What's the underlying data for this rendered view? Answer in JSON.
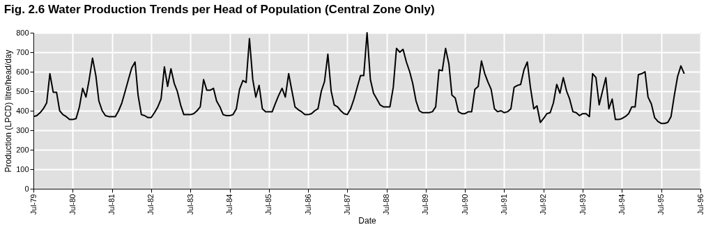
{
  "chart_data": {
    "type": "line",
    "title": "Fig. 2.6  Water Production Trends per Head of Population (Central Zone Only)",
    "xlabel": "Date",
    "ylabel": "Production (LPCD) litre/head/day",
    "x": [
      "1979-07",
      "1979-08",
      "1979-09",
      "1979-10",
      "1979-11",
      "1979-12",
      "1980-01",
      "1980-02",
      "1980-03",
      "1980-04",
      "1980-05",
      "1980-06",
      "1980-07",
      "1980-08",
      "1980-09",
      "1980-10",
      "1980-11",
      "1980-12",
      "1981-01",
      "1981-02",
      "1981-03",
      "1981-04",
      "1981-05",
      "1981-06",
      "1981-07",
      "1981-08",
      "1981-09",
      "1981-10",
      "1981-11",
      "1981-12",
      "1982-01",
      "1982-02",
      "1982-03",
      "1982-04",
      "1982-05",
      "1982-06",
      "1982-07",
      "1982-08",
      "1982-09",
      "1982-10",
      "1982-11",
      "1982-12",
      "1983-01",
      "1983-02",
      "1983-03",
      "1983-04",
      "1983-05",
      "1983-06",
      "1983-07",
      "1983-08",
      "1983-09",
      "1983-10",
      "1983-11",
      "1983-12",
      "1984-01",
      "1984-02",
      "1984-03",
      "1984-04",
      "1984-05",
      "1984-06",
      "1984-07",
      "1984-08",
      "1984-09",
      "1984-10",
      "1984-11",
      "1984-12",
      "1985-01",
      "1985-02",
      "1985-03",
      "1985-04",
      "1985-05",
      "1985-06",
      "1985-07",
      "1985-08",
      "1985-09",
      "1985-10",
      "1985-11",
      "1985-12",
      "1986-01",
      "1986-02",
      "1986-03",
      "1986-04",
      "1986-05",
      "1986-06",
      "1986-07",
      "1986-08",
      "1986-09",
      "1986-10",
      "1986-11",
      "1986-12",
      "1987-01",
      "1987-02",
      "1987-03",
      "1987-04",
      "1987-05",
      "1987-06",
      "1987-07",
      "1987-08",
      "1987-09",
      "1987-10",
      "1987-11",
      "1987-12",
      "1988-01",
      "1988-02",
      "1988-03",
      "1988-04",
      "1988-05",
      "1988-06",
      "1988-07",
      "1988-08",
      "1988-09",
      "1988-10",
      "1988-11",
      "1988-12",
      "1989-01",
      "1989-02",
      "1989-03",
      "1989-04",
      "1989-05",
      "1989-06",
      "1989-07",
      "1989-08",
      "1989-09",
      "1989-10",
      "1989-11",
      "1989-12",
      "1990-01",
      "1990-02",
      "1990-03",
      "1990-04",
      "1990-05",
      "1990-06",
      "1990-07",
      "1990-08",
      "1990-09",
      "1990-10",
      "1990-11",
      "1990-12",
      "1991-01",
      "1991-02",
      "1991-03",
      "1991-04",
      "1991-05",
      "1991-06",
      "1991-07",
      "1991-08",
      "1991-09",
      "1991-10",
      "1991-11",
      "1991-12",
      "1992-01",
      "1992-02",
      "1992-03",
      "1992-04",
      "1992-05",
      "1992-06",
      "1992-07",
      "1992-08",
      "1992-09",
      "1992-10",
      "1992-11",
      "1992-12",
      "1993-01",
      "1993-02",
      "1993-03",
      "1993-04",
      "1993-05",
      "1993-06",
      "1993-07",
      "1993-08",
      "1993-09",
      "1993-10",
      "1993-11",
      "1993-12",
      "1994-01",
      "1994-02",
      "1994-03",
      "1994-04",
      "1994-05",
      "1994-06",
      "1994-07",
      "1994-08",
      "1994-09",
      "1994-10",
      "1994-11",
      "1994-12",
      "1995-01",
      "1995-02",
      "1995-03",
      "1995-04",
      "1995-05",
      "1995-06",
      "1995-07",
      "1995-08",
      "1995-09",
      "1995-10",
      "1995-11",
      "1995-12",
      "1996-01",
      "1996-02"
    ],
    "series": [
      {
        "color": "#000000",
        "values": [
          370,
          375,
          390,
          410,
          440,
          590,
          495,
          495,
          400,
          380,
          370,
          355,
          355,
          360,
          420,
          515,
          470,
          560,
          670,
          580,
          450,
          400,
          375,
          370,
          370,
          370,
          400,
          440,
          500,
          560,
          620,
          650,
          480,
          380,
          375,
          365,
          365,
          390,
          420,
          460,
          625,
          525,
          615,
          540,
          500,
          430,
          380,
          380,
          380,
          385,
          400,
          420,
          560,
          505,
          505,
          515,
          450,
          420,
          380,
          375,
          375,
          380,
          410,
          510,
          555,
          545,
          770,
          560,
          470,
          530,
          410,
          395,
          395,
          395,
          440,
          480,
          515,
          470,
          590,
          500,
          420,
          405,
          395,
          380,
          380,
          385,
          400,
          410,
          500,
          550,
          690,
          500,
          430,
          420,
          400,
          385,
          380,
          410,
          460,
          520,
          580,
          580,
          800,
          560,
          490,
          460,
          430,
          420,
          420,
          420,
          520,
          720,
          700,
          715,
          650,
          600,
          540,
          450,
          400,
          390,
          390,
          390,
          395,
          420,
          610,
          605,
          720,
          640,
          480,
          465,
          395,
          385,
          385,
          395,
          395,
          510,
          525,
          655,
          590,
          545,
          510,
          410,
          395,
          400,
          390,
          395,
          410,
          520,
          530,
          535,
          610,
          650,
          520,
          410,
          425,
          340,
          360,
          385,
          390,
          440,
          535,
          490,
          570,
          500,
          460,
          395,
          390,
          375,
          385,
          385,
          370,
          590,
          570,
          430,
          500,
          570,
          410,
          460,
          355,
          355,
          360,
          370,
          385,
          420,
          420,
          585,
          590,
          600,
          470,
          435,
          365,
          345,
          335,
          335,
          340,
          370,
          480,
          575,
          630,
          590
        ]
      }
    ],
    "xlim": [
      "1979-07",
      "1996-07"
    ],
    "xticks": [
      {
        "value": "1979-07",
        "label": "Jul-79"
      },
      {
        "value": "1980-07",
        "label": "Jul-80"
      },
      {
        "value": "1981-07",
        "label": "Jul-81"
      },
      {
        "value": "1982-07",
        "label": "Jul-82"
      },
      {
        "value": "1983-07",
        "label": "Jul-83"
      },
      {
        "value": "1984-07",
        "label": "Jul-84"
      },
      {
        "value": "1985-07",
        "label": "Jul-85"
      },
      {
        "value": "1986-07",
        "label": "Jul-86"
      },
      {
        "value": "1987-07",
        "label": "Jul-87"
      },
      {
        "value": "1988-07",
        "label": "Jul-88"
      },
      {
        "value": "1989-07",
        "label": "Jul-89"
      },
      {
        "value": "1990-07",
        "label": "Jul-90"
      },
      {
        "value": "1991-07",
        "label": "Jul-91"
      },
      {
        "value": "1992-07",
        "label": "Jul-92"
      },
      {
        "value": "1993-07",
        "label": "Jul-93"
      },
      {
        "value": "1994-07",
        "label": "Jul-94"
      },
      {
        "value": "1995-07",
        "label": "Jul-95"
      },
      {
        "value": "1996-07",
        "label": "Jul-96"
      }
    ],
    "ylim": [
      0,
      800
    ],
    "yticks": [
      0,
      100,
      200,
      300,
      400,
      500,
      600,
      700,
      800
    ],
    "grid": true,
    "legend": false,
    "marker": "none",
    "line_style": "solid"
  }
}
